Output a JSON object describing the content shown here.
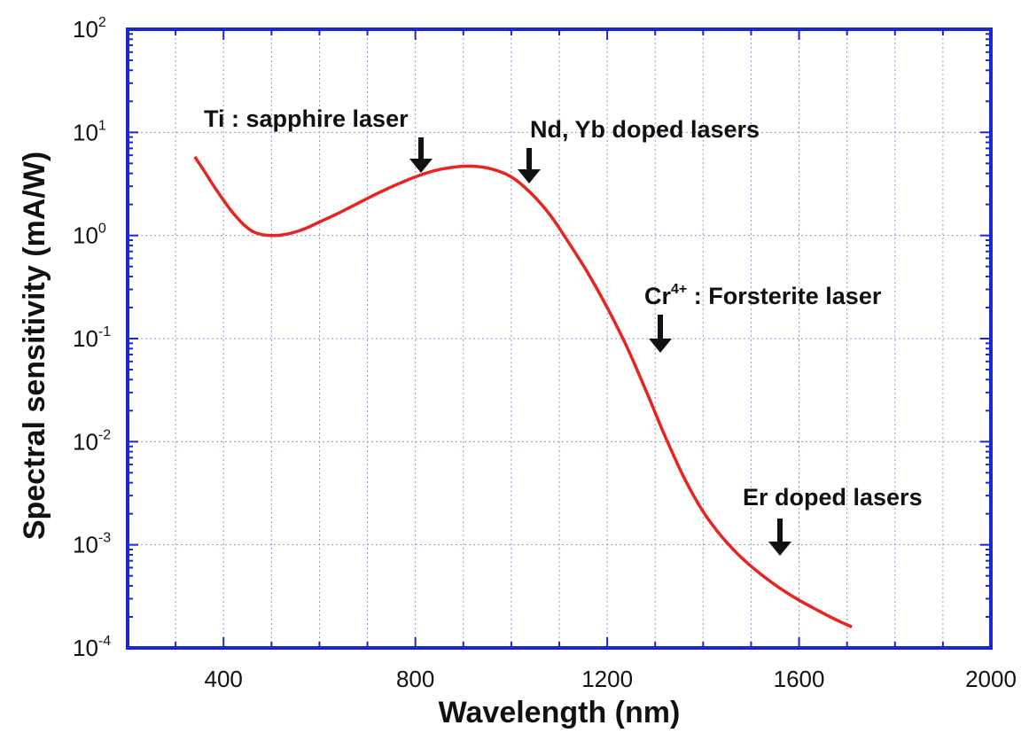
{
  "chart_data": {
    "type": "line",
    "xlabel": "Wavelength (nm)",
    "ylabel": "Spectral sensitivity (mA/W)",
    "xlim": [
      200,
      2000
    ],
    "ylim": [
      0.0001,
      100
    ],
    "y_scale": "log",
    "grid": true,
    "x_ticks": [
      "400",
      "800",
      "1200",
      "1600",
      "2000"
    ],
    "y_ticks": [
      {
        "base": "10",
        "exp": "2"
      },
      {
        "base": "10",
        "exp": "1"
      },
      {
        "base": "10",
        "exp": "0"
      },
      {
        "base": "10",
        "exp": "-1"
      },
      {
        "base": "10",
        "exp": "-2"
      },
      {
        "base": "10",
        "exp": "-3"
      },
      {
        "base": "10",
        "exp": "-4"
      }
    ],
    "series": [
      {
        "color": "#e8241e",
        "x": [
          340,
          360,
          380,
          400,
          420,
          440,
          460,
          480,
          500,
          520,
          540,
          560,
          580,
          600,
          640,
          680,
          720,
          760,
          800,
          840,
          880,
          920,
          960,
          1000,
          1040,
          1080,
          1120,
          1160,
          1200,
          1240,
          1280,
          1320,
          1360,
          1400,
          1440,
          1480,
          1520,
          1560,
          1600,
          1640,
          1680,
          1710
        ],
        "y": [
          5.8,
          4.2,
          3.0,
          2.2,
          1.65,
          1.3,
          1.1,
          1.02,
          1.0,
          1.01,
          1.05,
          1.12,
          1.22,
          1.35,
          1.65,
          2.05,
          2.55,
          3.1,
          3.7,
          4.25,
          4.6,
          4.7,
          4.4,
          3.7,
          2.6,
          1.6,
          0.85,
          0.43,
          0.2,
          0.085,
          0.032,
          0.0115,
          0.0045,
          0.0021,
          0.00118,
          0.00075,
          0.00052,
          0.00038,
          0.00029,
          0.00023,
          0.000185,
          0.00016
        ]
      }
    ],
    "annotations": [
      {
        "id": "ti",
        "text": "Ti : sapphire laser",
        "x": 820
      },
      {
        "id": "nd",
        "text": "Nd, Yb doped lasers",
        "x": 1050
      },
      {
        "id": "cr",
        "text_main": "Cr",
        "text_sup": "4+",
        "text_rest": " : Forsterite laser",
        "x": 1310
      },
      {
        "id": "er",
        "text": "Er doped lasers",
        "x": 1570
      }
    ]
  },
  "colors": {
    "frame": "#1b26d8",
    "grid": "#8e94dc",
    "curve": "#e8241e",
    "text": "#111111"
  }
}
